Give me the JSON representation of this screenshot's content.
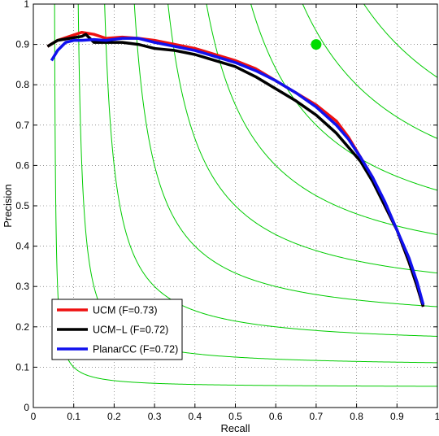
{
  "chart_data": {
    "type": "line",
    "title": "",
    "xlabel": "Recall",
    "ylabel": "Precision",
    "xlim": [
      0,
      1
    ],
    "ylim": [
      0,
      1
    ],
    "grid": true,
    "x_ticks": [
      "0",
      "0.1",
      "0.2",
      "0.3",
      "0.4",
      "0.5",
      "0.6",
      "0.7",
      "0.8",
      "0.9",
      "1"
    ],
    "y_ticks": [
      "0",
      "0.1",
      "0.2",
      "0.3",
      "0.4",
      "0.5",
      "0.6",
      "0.7",
      "0.8",
      "0.9",
      "1"
    ],
    "legend_position": "bottom-left",
    "iso_f_levels": [
      0.1,
      0.2,
      0.3,
      0.4,
      0.5,
      0.6,
      0.7,
      0.8,
      0.9
    ],
    "iso_f_color": "#00cc00",
    "human_point": {
      "x": 0.7,
      "y": 0.9,
      "color": "#00dd00"
    },
    "series": [
      {
        "name": "UCM (F=0.73)",
        "color": "#ee1111",
        "x": [
          0.035,
          0.06,
          0.09,
          0.12,
          0.15,
          0.18,
          0.22,
          0.26,
          0.3,
          0.35,
          0.4,
          0.45,
          0.5,
          0.55,
          0.6,
          0.65,
          0.7,
          0.75,
          0.78,
          0.81,
          0.84,
          0.87,
          0.9,
          0.93,
          0.95,
          0.965
        ],
        "y": [
          0.895,
          0.91,
          0.92,
          0.93,
          0.925,
          0.915,
          0.918,
          0.915,
          0.91,
          0.9,
          0.89,
          0.875,
          0.86,
          0.84,
          0.81,
          0.78,
          0.75,
          0.71,
          0.67,
          0.62,
          0.57,
          0.5,
          0.44,
          0.36,
          0.3,
          0.25
        ]
      },
      {
        "name": "UCM−L (F=0.72)",
        "color": "#000000",
        "x": [
          0.035,
          0.06,
          0.09,
          0.12,
          0.13,
          0.15,
          0.18,
          0.22,
          0.26,
          0.3,
          0.35,
          0.4,
          0.45,
          0.5,
          0.55,
          0.6,
          0.65,
          0.7,
          0.75,
          0.78,
          0.81,
          0.84,
          0.87,
          0.9,
          0.93,
          0.95,
          0.965
        ],
        "y": [
          0.895,
          0.91,
          0.915,
          0.92,
          0.925,
          0.905,
          0.905,
          0.905,
          0.9,
          0.89,
          0.885,
          0.875,
          0.86,
          0.845,
          0.82,
          0.79,
          0.76,
          0.725,
          0.68,
          0.645,
          0.61,
          0.56,
          0.5,
          0.44,
          0.36,
          0.3,
          0.25
        ]
      },
      {
        "name": "PlanarCC (F=0.72)",
        "color": "#1111ee",
        "x": [
          0.045,
          0.06,
          0.08,
          0.1,
          0.12,
          0.15,
          0.18,
          0.22,
          0.26,
          0.3,
          0.35,
          0.4,
          0.45,
          0.5,
          0.55,
          0.6,
          0.65,
          0.7,
          0.75,
          0.78,
          0.81,
          0.84,
          0.87,
          0.9,
          0.93,
          0.95,
          0.965
        ],
        "y": [
          0.86,
          0.885,
          0.905,
          0.91,
          0.91,
          0.912,
          0.91,
          0.915,
          0.915,
          0.905,
          0.895,
          0.885,
          0.87,
          0.855,
          0.835,
          0.81,
          0.78,
          0.745,
          0.7,
          0.665,
          0.62,
          0.57,
          0.51,
          0.44,
          0.37,
          0.31,
          0.255
        ]
      }
    ]
  }
}
